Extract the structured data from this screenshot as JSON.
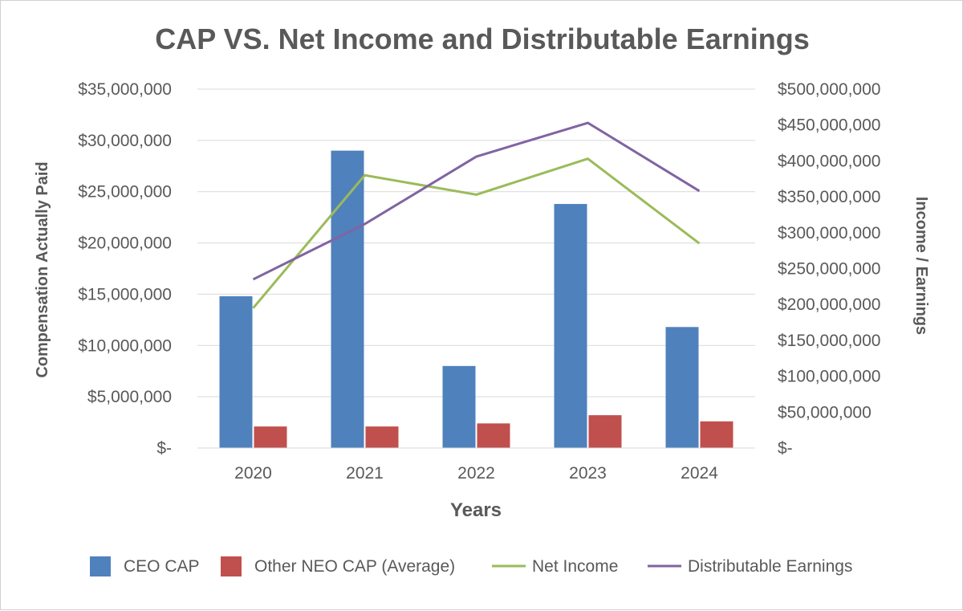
{
  "chart_data": {
    "type": "bar+line",
    "title": "CAP VS. Net Income and Distributable Earnings",
    "xlabel": "Years",
    "ylabel_left": "Compensation Actually Paid",
    "ylabel_right": "Income / Earnings",
    "categories": [
      "2020",
      "2021",
      "2022",
      "2023",
      "2024"
    ],
    "ylim_left": [
      0,
      35000000
    ],
    "ylim_right": [
      0,
      500000000
    ],
    "left_ticks": [
      "$-",
      "$5,000,000",
      "$10,000,000",
      "$15,000,000",
      "$20,000,000",
      "$25,000,000",
      "$30,000,000",
      "$35,000,000"
    ],
    "right_ticks": [
      "$-",
      "$50,000,000",
      "$100,000,000",
      "$150,000,000",
      "$200,000,000",
      "$250,000,000",
      "$300,000,000",
      "$350,000,000",
      "$400,000,000",
      "$450,000,000",
      "$500,000,000"
    ],
    "bar_series": [
      {
        "name": "CEO CAP",
        "color": "#4f81bd",
        "axis": "left",
        "values": [
          14800000,
          29000000,
          8000000,
          23800000,
          11800000
        ]
      },
      {
        "name": "Other NEO CAP (Average)",
        "color": "#c0504d",
        "axis": "left",
        "values": [
          2100000,
          2100000,
          2400000,
          3200000,
          2600000
        ]
      }
    ],
    "line_series": [
      {
        "name": "Net Income",
        "color": "#9bbb59",
        "axis": "right",
        "values": [
          195000000,
          380000000,
          353000000,
          403000000,
          285000000
        ]
      },
      {
        "name": "Distributable Earnings",
        "color": "#8064a2",
        "axis": "right",
        "values": [
          235000000,
          312000000,
          406000000,
          453000000,
          358000000
        ]
      }
    ],
    "grid": true,
    "legend_position": "bottom"
  }
}
